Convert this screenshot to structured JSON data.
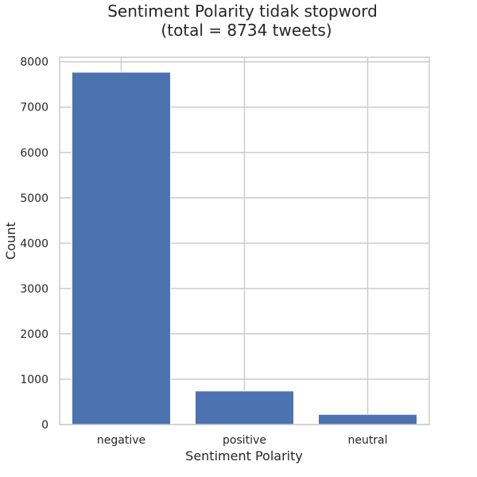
{
  "chart_data": {
    "type": "bar",
    "title": "Sentiment Polarity tidak stopword",
    "subtitle": "(total = 8734 tweets)",
    "xlabel": "Sentiment Polarity",
    "ylabel": "Count",
    "categories": [
      "negative",
      "positive",
      "neutral"
    ],
    "values": [
      7770,
      740,
      224
    ],
    "ylim": [
      0,
      8100
    ],
    "yticks": [
      0,
      1000,
      2000,
      3000,
      4000,
      5000,
      6000,
      7000,
      8000
    ],
    "grid": true,
    "bar_color": "#4c72b0",
    "grid_color": "#cccccc"
  }
}
